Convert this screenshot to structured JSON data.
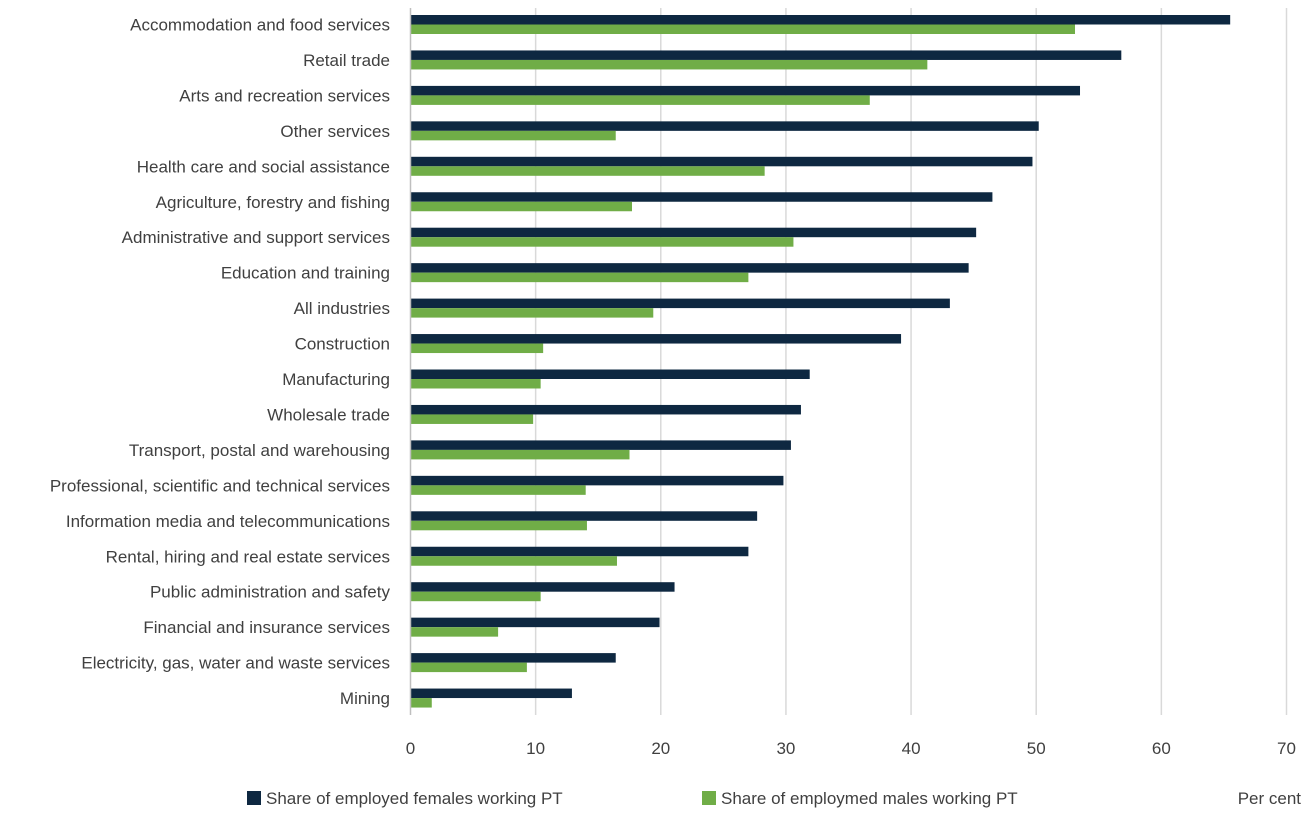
{
  "chart_data": {
    "type": "bar",
    "orientation": "horizontal",
    "categories": [
      "Accommodation and food services",
      "Retail trade",
      "Arts and recreation services",
      "Other services",
      "Health care and social assistance",
      "Agriculture, forestry and fishing",
      "Administrative and support services",
      "Education and training",
      "All industries ",
      "Construction",
      "Manufacturing",
      "Wholesale trade",
      "Transport, postal and warehousing",
      "Professional, scientific and technical services",
      "Information media and telecommunications",
      "Rental, hiring and real estate services",
      "Public administration and safety",
      "Financial and insurance services",
      "Electricity, gas, water and waste services",
      "Mining"
    ],
    "series": [
      {
        "name": "Share of employed females working PT",
        "color": "#0e2841",
        "values": [
          65.5,
          56.8,
          53.5,
          50.2,
          49.7,
          46.5,
          45.2,
          44.6,
          43.1,
          39.2,
          31.9,
          31.2,
          30.4,
          29.8,
          27.7,
          27.0,
          21.1,
          19.9,
          16.4,
          12.9
        ]
      },
      {
        "name": "Share of employmed males working PT",
        "color": "#70ad47",
        "values": [
          53.1,
          41.3,
          36.7,
          16.4,
          28.3,
          17.7,
          30.6,
          27.0,
          19.4,
          10.6,
          10.4,
          9.8,
          17.5,
          14.0,
          14.1,
          16.5,
          10.4,
          7.0,
          9.3,
          1.7
        ]
      }
    ],
    "xlim": [
      0,
      70
    ],
    "xticks": [
      "0",
      "10",
      "20",
      "30",
      "40",
      "50",
      "60",
      "70"
    ],
    "xlabel": "Per cent",
    "grid": "vertical",
    "legend_position": "bottom"
  }
}
